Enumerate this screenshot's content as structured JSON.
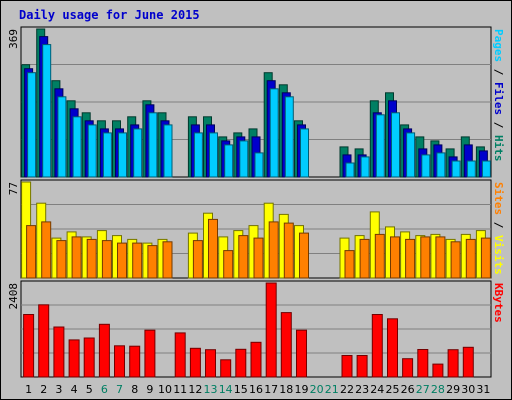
{
  "chart_data": {
    "type": "bar",
    "title": "Daily usage for June 2015",
    "categories": [
      "1",
      "2",
      "3",
      "4",
      "5",
      "6",
      "7",
      "8",
      "9",
      "10",
      "11",
      "12",
      "13",
      "14",
      "15",
      "16",
      "17",
      "18",
      "19",
      "20",
      "21",
      "22",
      "23",
      "24",
      "25",
      "26",
      "27",
      "28",
      "29",
      "30",
      "31"
    ],
    "weekend_days": [
      "6",
      "7",
      "13",
      "14",
      "20",
      "21",
      "27",
      "28"
    ],
    "panels": [
      {
        "id": "top",
        "ymax_label": "369",
        "ylim": [
          0,
          369
        ],
        "right_labels": [
          {
            "text": "Pages",
            "color": "#00ccff"
          },
          {
            "text": " / ",
            "color": "#000000"
          },
          {
            "text": "Files",
            "color": "#0000cc"
          },
          {
            "text": " / ",
            "color": "#000000"
          },
          {
            "text": "Hits",
            "color": "#007f63"
          }
        ],
        "series": [
          {
            "name": "Hits",
            "color": "#007f63",
            "values": [
              280,
              369,
              240,
              190,
              160,
              140,
              140,
              150,
              190,
              160,
              0,
              150,
              150,
              100,
              110,
              120,
              260,
              230,
              140,
              0,
              0,
              75,
              70,
              190,
              210,
              130,
              100,
              90,
              70,
              100,
              75
            ]
          },
          {
            "name": "Files",
            "color": "#0000cc",
            "values": [
              270,
              350,
              220,
              170,
              140,
              120,
              120,
              130,
              180,
              140,
              0,
              130,
              130,
              90,
              100,
              100,
              240,
              210,
              130,
              0,
              0,
              55,
              55,
              160,
              190,
              120,
              70,
              80,
              50,
              80,
              65
            ]
          },
          {
            "name": "Pages",
            "color": "#00ccff",
            "values": [
              260,
              330,
              200,
              150,
              130,
              110,
              110,
              120,
              160,
              130,
              0,
              110,
              110,
              80,
              90,
              60,
              220,
              200,
              120,
              0,
              0,
              35,
              50,
              155,
              160,
              110,
              55,
              60,
              40,
              40,
              40
            ]
          }
        ]
      },
      {
        "id": "middle",
        "ymax_label": "77",
        "ylim": [
          0,
          77
        ],
        "right_labels": [
          {
            "text": "Sites",
            "color": "#ff8000"
          },
          {
            "text": " / ",
            "color": "#000000"
          },
          {
            "text": "Visits",
            "color": "#ffff00"
          }
        ],
        "series": [
          {
            "name": "Visits",
            "color": "#ffff00",
            "values": [
              77,
              60,
              32,
              37,
              33,
              38,
              34,
              31,
              28,
              31,
              0,
              36,
              52,
              33,
              38,
              42,
              60,
              51,
              42,
              0,
              0,
              32,
              34,
              53,
              41,
              37,
              34,
              35,
              31,
              35,
              38
            ]
          },
          {
            "name": "Sites",
            "color": "#ff8000",
            "values": [
              42,
              45,
              30,
              33,
              31,
              30,
              28,
              28,
              26,
              29,
              0,
              30,
              47,
              22,
              34,
              32,
              45,
              44,
              36,
              0,
              0,
              22,
              31,
              35,
              33,
              31,
              33,
              33,
              29,
              31,
              32
            ]
          }
        ]
      },
      {
        "id": "bottom",
        "ymax_label": "2408",
        "ylim": [
          0,
          2408
        ],
        "right_labels": [
          {
            "text": "KBytes",
            "color": "#ff0000"
          }
        ],
        "series": [
          {
            "name": "KBytes",
            "color": "#ff0000",
            "values": [
              1600,
              1850,
              1280,
              950,
              1000,
              1350,
              800,
              790,
              1200,
              0,
              1130,
              735,
              700,
              440,
              710,
              890,
              2408,
              1650,
              1200,
              0,
              0,
              550,
              550,
              1600,
              1490,
              470,
              705,
              330,
              700,
              760,
              0
            ]
          }
        ]
      }
    ]
  },
  "colors": {
    "panel_bg": "#c0c0c0",
    "frame_bg": "#c0c0c0",
    "title_color": "#0000cc",
    "weekday_label": "#000000",
    "weekend_label": "#007f63"
  }
}
